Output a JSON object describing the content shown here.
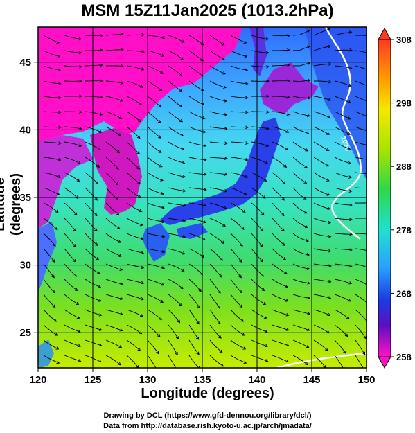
{
  "title": "MSM 15Z11Jan2025 (1013.2hPa)",
  "axes": {
    "xlabel": "Longitude (degrees)",
    "ylabel": "Latitude  (degrees)",
    "xticks": [
      "120",
      "125",
      "130",
      "135",
      "140",
      "145",
      "150"
    ],
    "yticks": [
      "45",
      "40",
      "35",
      "30",
      "25"
    ],
    "xrange": [
      120,
      150
    ],
    "yrange": [
      22.4,
      47.6
    ]
  },
  "colorbar": {
    "ticks": [
      "308",
      "298",
      "288",
      "278",
      "268",
      "258"
    ],
    "range": [
      258,
      308
    ]
  },
  "contour_label": "1020",
  "footer": {
    "line1": "Drawing by DCL (https://www.gfd-dennou.org/library/dcl/)",
    "line2": "Data from http://database.rish.kyoto-u.ac.jp/arch/jmadata/"
  },
  "colors": {
    "land_cold": "#ff10c8",
    "sea_cold": "#3a7cff",
    "sea_mid": "#38e0cc",
    "sea_warm": "#b0e800"
  }
}
